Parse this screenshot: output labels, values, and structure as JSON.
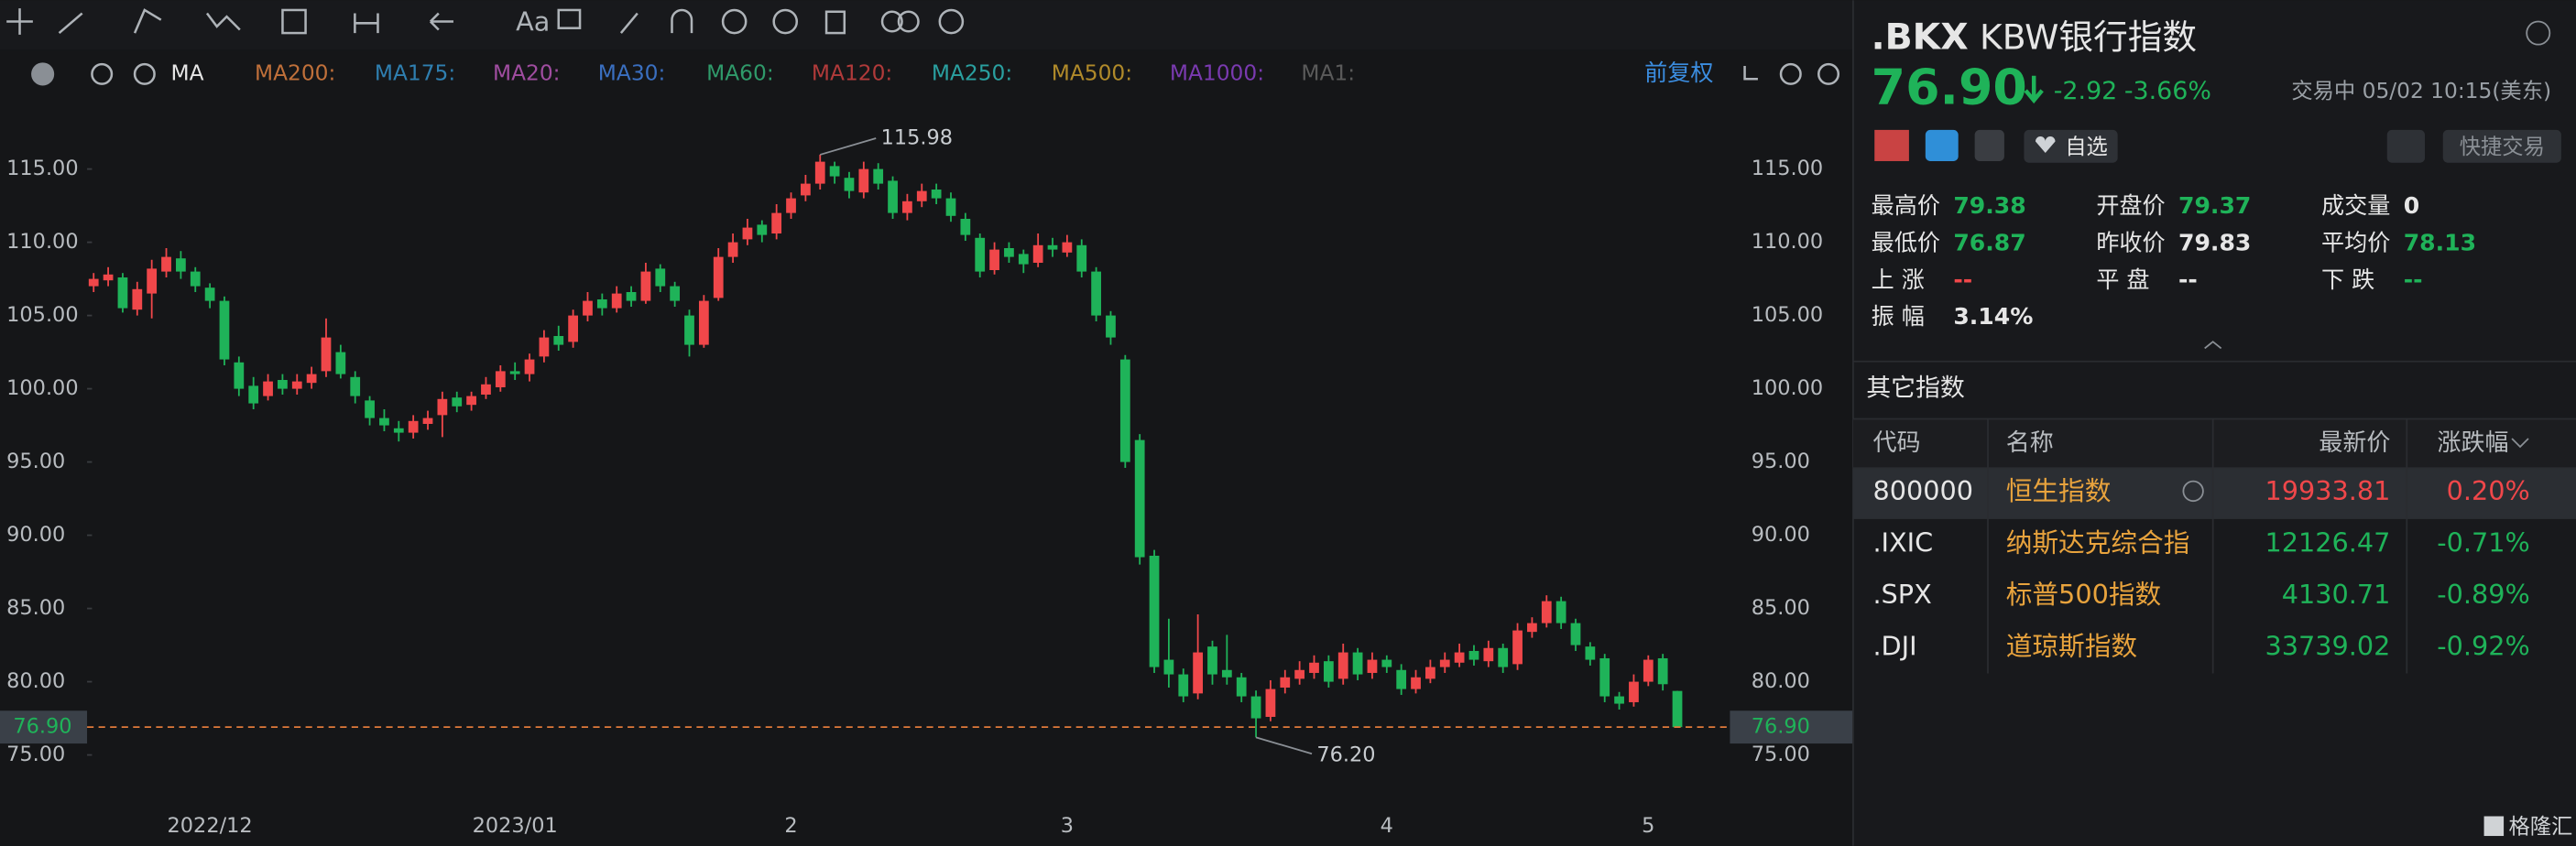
{
  "toolbar": {
    "ma_label": "MA",
    "ma_items": [
      {
        "label": "MA200:",
        "color": "#c0703a"
      },
      {
        "label": "MA175:",
        "color": "#2f7fb0"
      },
      {
        "label": "MA20:",
        "color": "#a04da0"
      },
      {
        "label": "MA30:",
        "color": "#3a6fc0"
      },
      {
        "label": "MA60:",
        "color": "#2f9a6a"
      },
      {
        "label": "MA120:",
        "color": "#b03a3a"
      },
      {
        "label": "MA250:",
        "color": "#2aa0a0"
      },
      {
        "label": "MA500:",
        "color": "#b08a2a"
      },
      {
        "label": "MA1000:",
        "color": "#7a3ab0"
      },
      {
        "label": "MA1:",
        "color": "#5a5a5a"
      }
    ],
    "adjust": "前复权"
  },
  "chart_data": {
    "type": "candlestick",
    "up_color": "#f0474a",
    "down_color": "#1fb359",
    "categories": [
      null,
      null,
      null,
      null,
      null,
      null,
      null,
      null,
      "2022/12",
      null,
      null,
      null,
      null,
      null,
      null,
      null,
      null,
      null,
      null,
      null,
      null,
      null,
      null,
      null,
      null,
      null,
      null,
      null,
      null,
      "2023/01",
      null,
      null,
      null,
      null,
      null,
      null,
      null,
      null,
      null,
      null,
      null,
      null,
      null,
      null,
      null,
      null,
      null,
      null,
      "2",
      null,
      null,
      null,
      null,
      null,
      null,
      null,
      null,
      null,
      null,
      null,
      null,
      null,
      null,
      null,
      null,
      null,
      null,
      "3",
      null,
      null,
      null,
      null,
      null,
      null,
      null,
      null,
      null,
      null,
      null,
      null,
      null,
      null,
      null,
      null,
      null,
      null,
      null,
      null,
      null,
      "4",
      null,
      null,
      null,
      null,
      null,
      null,
      null,
      null,
      null,
      null,
      null,
      null,
      null,
      null,
      null,
      null,
      null,
      "5",
      null
    ],
    "candles": [
      [
        107,
        107.9,
        106.6,
        107.5
      ],
      [
        107.4,
        108.3,
        107,
        107.8
      ],
      [
        107.6,
        107.9,
        105.2,
        105.5
      ],
      [
        105.4,
        107.3,
        105,
        106.8
      ],
      [
        106.5,
        108.8,
        104.8,
        108.2
      ],
      [
        108,
        109.6,
        107.6,
        109
      ],
      [
        108.9,
        109.4,
        107.5,
        108
      ],
      [
        108,
        108.3,
        106.6,
        107
      ],
      [
        106.9,
        107.2,
        105.5,
        106
      ],
      [
        106,
        106.3,
        101.6,
        102
      ],
      [
        101.8,
        102.2,
        99.5,
        100
      ],
      [
        100.2,
        100.8,
        98.6,
        99
      ],
      [
        99.5,
        101,
        99.2,
        100.5
      ],
      [
        100.6,
        101,
        99.6,
        100
      ],
      [
        100,
        101,
        99.6,
        100.5
      ],
      [
        100.4,
        101.5,
        100,
        101
      ],
      [
        101.2,
        104.8,
        100.8,
        103.5
      ],
      [
        102.5,
        103,
        100.7,
        101
      ],
      [
        100.8,
        101.2,
        99,
        99.5
      ],
      [
        99.2,
        99.5,
        97.5,
        98
      ],
      [
        98,
        98.6,
        97.1,
        97.5
      ],
      [
        97.3,
        97.8,
        96.4,
        97
      ],
      [
        97,
        98.2,
        96.6,
        97.8
      ],
      [
        97.6,
        98.5,
        97.2,
        98
      ],
      [
        98.2,
        99.8,
        96.7,
        99.3
      ],
      [
        99.4,
        99.8,
        98.4,
        98.8
      ],
      [
        98.9,
        99.8,
        98.5,
        99.5
      ],
      [
        99.6,
        100.8,
        99.3,
        100.3
      ],
      [
        100.1,
        101.6,
        99.8,
        101.2
      ],
      [
        101.2,
        101.8,
        100.6,
        101
      ],
      [
        101,
        102.4,
        100.5,
        102
      ],
      [
        102.2,
        104,
        101.8,
        103.5
      ],
      [
        103.6,
        104.3,
        102.6,
        103
      ],
      [
        103.2,
        105.4,
        102.8,
        105
      ],
      [
        105,
        106.6,
        104.6,
        106
      ],
      [
        106.1,
        106.5,
        105,
        105.5
      ],
      [
        105.5,
        107,
        105.2,
        106.5
      ],
      [
        106.6,
        107,
        105.6,
        106
      ],
      [
        106,
        108.6,
        105.8,
        108
      ],
      [
        108.2,
        108.5,
        106.6,
        107
      ],
      [
        107,
        107.3,
        105.6,
        106
      ],
      [
        105,
        105.4,
        102.2,
        103
      ],
      [
        103,
        106.4,
        102.8,
        106
      ],
      [
        106.2,
        109.6,
        106,
        109
      ],
      [
        109,
        110.6,
        108.6,
        110
      ],
      [
        110.2,
        111.6,
        109.8,
        111
      ],
      [
        111.2,
        111.5,
        110,
        110.5
      ],
      [
        110.6,
        112.6,
        110.2,
        112
      ],
      [
        112,
        113.4,
        111.6,
        113
      ],
      [
        113.2,
        114.6,
        112.8,
        114
      ],
      [
        114,
        115.98,
        113.6,
        115.5
      ],
      [
        115.2,
        115.5,
        114,
        114.5
      ],
      [
        114.4,
        114.8,
        113,
        113.5
      ],
      [
        113.4,
        115.5,
        113,
        115
      ],
      [
        115,
        115.4,
        113.6,
        114
      ],
      [
        114.2,
        114.5,
        111.6,
        112
      ],
      [
        112,
        113.3,
        111.5,
        112.8
      ],
      [
        112.8,
        114,
        112.4,
        113.5
      ],
      [
        113.6,
        114,
        112.6,
        113
      ],
      [
        113,
        113.4,
        111.4,
        111.8
      ],
      [
        111.6,
        112,
        110.1,
        110.5
      ],
      [
        110.3,
        110.6,
        107.6,
        108
      ],
      [
        108.1,
        110,
        107.8,
        109.5
      ],
      [
        109.6,
        110,
        108.6,
        109
      ],
      [
        109.2,
        109.5,
        107.9,
        108.5
      ],
      [
        108.6,
        110.6,
        108.3,
        109.8
      ],
      [
        109.8,
        110.3,
        109,
        109.5
      ],
      [
        109.3,
        110.5,
        109,
        110
      ],
      [
        109.8,
        110.2,
        107.6,
        108
      ],
      [
        108,
        108.3,
        104.6,
        105
      ],
      [
        105,
        105.3,
        103,
        103.5
      ],
      [
        102,
        102.3,
        94.6,
        95
      ],
      [
        96.5,
        96.9,
        88,
        88.5
      ],
      [
        88.6,
        89,
        80.6,
        81
      ],
      [
        81.5,
        84.3,
        79.6,
        80.5
      ],
      [
        80.5,
        80.9,
        78.6,
        79
      ],
      [
        79.2,
        84.6,
        78.8,
        82
      ],
      [
        82.4,
        82.8,
        79.8,
        80.5
      ],
      [
        80.8,
        83.2,
        79.8,
        80.3
      ],
      [
        80.3,
        80.6,
        78.6,
        79
      ],
      [
        79,
        79.4,
        76.2,
        77.5
      ],
      [
        77.6,
        80.1,
        77.3,
        79.5
      ],
      [
        79.6,
        80.8,
        79.2,
        80.3
      ],
      [
        80.2,
        81.4,
        79.8,
        80.8
      ],
      [
        80.6,
        81.8,
        80.2,
        81.3
      ],
      [
        81.4,
        81.8,
        79.6,
        80
      ],
      [
        80.2,
        82.6,
        79.8,
        82
      ],
      [
        82,
        82.3,
        80.1,
        80.5
      ],
      [
        80.6,
        82,
        80.2,
        81.5
      ],
      [
        81.5,
        81.8,
        80.6,
        81
      ],
      [
        80.8,
        81.2,
        79.1,
        79.5
      ],
      [
        79.5,
        80.8,
        79.2,
        80.3
      ],
      [
        80.2,
        81.5,
        79.9,
        81
      ],
      [
        81,
        82,
        80.6,
        81.5
      ],
      [
        81.3,
        82.6,
        81,
        82
      ],
      [
        82.1,
        82.5,
        81.1,
        81.5
      ],
      [
        81.4,
        82.8,
        81,
        82.3
      ],
      [
        82.3,
        82.6,
        80.6,
        81
      ],
      [
        81.2,
        84,
        80.8,
        83.5
      ],
      [
        83.4,
        84.4,
        83,
        84
      ],
      [
        84,
        85.9,
        83.7,
        85.5
      ],
      [
        85.5,
        85.8,
        83.6,
        84
      ],
      [
        84,
        84.3,
        82.1,
        82.5
      ],
      [
        82.4,
        82.7,
        81.1,
        81.5
      ],
      [
        81.6,
        81.9,
        78.6,
        79
      ],
      [
        79,
        79.3,
        78.1,
        78.5
      ],
      [
        78.6,
        80.5,
        78.3,
        80
      ],
      [
        80,
        81.8,
        79.7,
        81.5
      ],
      [
        81.6,
        81.9,
        79.4,
        79.83
      ],
      [
        79.37,
        79.38,
        76.87,
        76.9
      ]
    ],
    "ylim": [
      71.6,
      119.8
    ],
    "yticks": [
      {
        "value": 75,
        "label": "75.00"
      },
      {
        "value": 80,
        "label": "80.00"
      },
      {
        "value": 85,
        "label": "85.00"
      },
      {
        "value": 90,
        "label": "90.00"
      },
      {
        "value": 95,
        "label": "95.00"
      },
      {
        "value": 100,
        "label": "100.00"
      },
      {
        "value": 105,
        "label": "105.00"
      },
      {
        "value": 110,
        "label": "110.00"
      },
      {
        "value": 115,
        "label": "115.00"
      }
    ],
    "high_label": {
      "value": 115.98,
      "label": "115.98"
    },
    "low_label": {
      "value": 76.2,
      "label": "76.20"
    },
    "last_price": {
      "value": 76.9,
      "label": "76.90"
    },
    "last_price_color": "#e07a3a"
  },
  "quote": {
    "symbol": ".BKX",
    "name": "KBW银行指数",
    "price": "76.90",
    "change": "-2.92",
    "change_pct": "-3.66%",
    "status": "交易中 05/02 10:15(美东)",
    "watch": "自选",
    "quick_trade": "快捷交易",
    "stats": [
      [
        "最高价",
        "79.38"
      ],
      [
        "开盘价",
        "79.37"
      ],
      [
        "成交量",
        "0"
      ],
      [
        "最低价",
        "76.87"
      ],
      [
        "昨收价",
        "79.83"
      ],
      [
        "平均价",
        "78.13"
      ],
      [
        "上 涨",
        "--"
      ],
      [
        "平 盘",
        "--"
      ],
      [
        "下 跌",
        "--"
      ],
      [
        "振 幅",
        "3.14%"
      ]
    ]
  },
  "other_indices": {
    "title": "其它指数",
    "headers": [
      "代码",
      "名称",
      "最新价",
      "涨跌幅"
    ],
    "rows": [
      [
        "800000",
        "恒生指数",
        "19933.81",
        "0.20%"
      ],
      [
        ".IXIC",
        "纳斯达克综合指",
        "12126.47",
        "-0.71%"
      ],
      [
        ".SPX",
        "标普500指数",
        "4130.71",
        "-0.89%"
      ],
      [
        ".DJI",
        "道琼斯指数",
        "33739.02",
        "-0.92%"
      ]
    ]
  },
  "watermark": "格隆汇"
}
